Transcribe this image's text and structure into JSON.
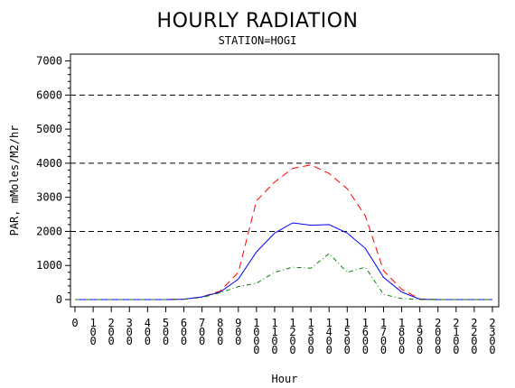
{
  "colors": {
    "background": "#ffffff",
    "axis": "#000000",
    "reference_lines": "#000000"
  },
  "chart_data": {
    "type": "line",
    "title": "HOURLY RADIATION",
    "subtitle": "STATION=HOGI",
    "xlabel": "Hour",
    "ylabel": "PAR, mMoles/M2/hr",
    "x": [
      0,
      100,
      200,
      300,
      400,
      500,
      600,
      700,
      800,
      900,
      1000,
      1100,
      1200,
      1300,
      1400,
      1500,
      1600,
      1700,
      1800,
      1900,
      2000,
      2100,
      2200,
      2300
    ],
    "x_tick_labels": [
      "0",
      "100",
      "200",
      "300",
      "400",
      "500",
      "600",
      "700",
      "800",
      "900",
      "1000",
      "1100",
      "1200",
      "1300",
      "1400",
      "1500",
      "1600",
      "1700",
      "1800",
      "1900",
      "2000",
      "2100",
      "2200",
      "2300"
    ],
    "y_ticks": [
      0,
      1000,
      2000,
      3000,
      4000,
      5000,
      6000,
      7000
    ],
    "y_tick_labels": [
      "0",
      "1000",
      "2000",
      "3000",
      "4000",
      "5000",
      "6000",
      "7000"
    ],
    "xlim": [
      0,
      2300
    ],
    "ylim": [
      0,
      7200
    ],
    "reference_lines": [
      2000,
      4000,
      6000
    ],
    "grid": false,
    "legend": "none",
    "series": [
      {
        "color": "#ff0000",
        "dash": "dashed",
        "values": [
          0,
          0,
          0,
          0,
          0,
          0,
          10,
          80,
          250,
          800,
          2900,
          3450,
          3850,
          3950,
          3700,
          3250,
          2450,
          850,
          300,
          20,
          0,
          0,
          0,
          0
        ]
      },
      {
        "color": "#0000ff",
        "dash": "solid",
        "values": [
          0,
          0,
          0,
          0,
          0,
          0,
          10,
          80,
          220,
          600,
          1400,
          1950,
          2250,
          2180,
          2200,
          1950,
          1500,
          650,
          220,
          10,
          0,
          0,
          0,
          0
        ]
      },
      {
        "color": "#008000",
        "dash": "dash-dot",
        "values": [
          0,
          0,
          0,
          0,
          0,
          0,
          10,
          60,
          200,
          380,
          480,
          800,
          950,
          920,
          1350,
          800,
          950,
          150,
          30,
          0,
          0,
          0,
          0,
          0
        ]
      }
    ]
  }
}
